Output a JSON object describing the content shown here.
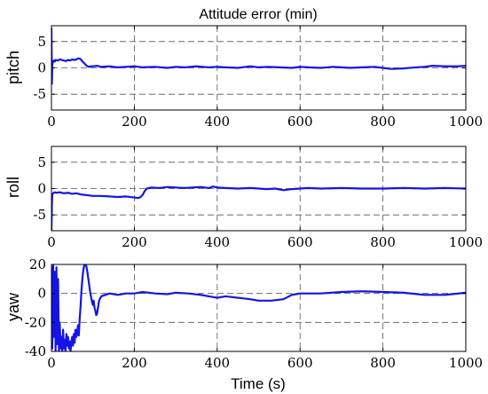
{
  "chart_data": [
    {
      "type": "line",
      "title": "Attitude error (min)",
      "xlabel": "",
      "ylabel": "pitch",
      "xlim": [
        0,
        1000
      ],
      "ylim": [
        -8,
        8
      ],
      "xticks": [
        0,
        200,
        400,
        600,
        800,
        1000
      ],
      "yticks": [
        -5,
        0,
        5
      ],
      "grid": true,
      "series": [
        {
          "color": "#1414e6",
          "x": [
            0,
            1,
            2,
            3,
            4,
            6,
            8,
            10,
            15,
            20,
            25,
            30,
            35,
            40,
            45,
            50,
            55,
            60,
            65,
            70,
            75,
            80,
            85,
            90,
            95,
            100,
            110,
            120,
            140,
            160,
            180,
            200,
            220,
            250,
            280,
            300,
            320,
            350,
            380,
            400,
            420,
            450,
            480,
            500,
            520,
            550,
            580,
            600,
            620,
            650,
            680,
            700,
            720,
            750,
            780,
            800,
            820,
            850,
            880,
            900,
            920,
            950,
            980,
            1000
          ],
          "y": [
            7.5,
            -3,
            0.5,
            1.0,
            1.2,
            1.4,
            1.2,
            1.5,
            1.4,
            1.6,
            1.5,
            1.4,
            1.3,
            1.5,
            1.4,
            1.6,
            1.5,
            1.6,
            1.8,
            1.7,
            1.2,
            0.8,
            0.4,
            0.2,
            0.3,
            0.3,
            0.4,
            0.2,
            0.3,
            0.1,
            0.2,
            0.3,
            0.1,
            0.2,
            0.0,
            0.2,
            0.1,
            0.3,
            0.1,
            0.2,
            0.1,
            0.0,
            0.3,
            0.1,
            0.2,
            0.1,
            0.0,
            0.2,
            0.1,
            0.0,
            0.2,
            0.1,
            0.0,
            0.1,
            0.2,
            0.0,
            -0.2,
            -0.1,
            0.1,
            0.2,
            0.4,
            0.3,
            0.3,
            0.4
          ]
        }
      ]
    },
    {
      "type": "line",
      "title": "",
      "xlabel": "",
      "ylabel": "roll",
      "xlim": [
        0,
        1000
      ],
      "ylim": [
        -8,
        8
      ],
      "xticks": [
        0,
        200,
        400,
        600,
        800,
        1000
      ],
      "yticks": [
        -5,
        0,
        5
      ],
      "grid": true,
      "series": [
        {
          "color": "#1414e6",
          "x": [
            0,
            1,
            2,
            3,
            5,
            8,
            10,
            20,
            30,
            40,
            50,
            60,
            70,
            80,
            90,
            100,
            120,
            140,
            160,
            180,
            200,
            210,
            215,
            220,
            225,
            230,
            240,
            260,
            280,
            300,
            320,
            340,
            360,
            380,
            390,
            400,
            420,
            450,
            480,
            500,
            520,
            540,
            560,
            580,
            600,
            620,
            650,
            700,
            750,
            800,
            850,
            900,
            950,
            1000
          ],
          "y": [
            -8,
            -3,
            -1.2,
            -1.0,
            -0.8,
            -0.7,
            -0.8,
            -0.7,
            -0.9,
            -0.8,
            -1.0,
            -0.9,
            -1.1,
            -1.2,
            -1.3,
            -1.4,
            -1.4,
            -1.5,
            -1.6,
            -1.5,
            -1.7,
            -1.8,
            -1.6,
            -1.2,
            -0.5,
            0.0,
            0.2,
            0.1,
            0.3,
            0.2,
            0.1,
            0.2,
            0.3,
            0.1,
            0.4,
            0.2,
            0.1,
            0.0,
            0.1,
            0.0,
            -0.1,
            0.0,
            -0.3,
            -0.1,
            0.0,
            0.1,
            0.0,
            0.1,
            0.0,
            0.0,
            0.1,
            0.0,
            0.1,
            0.0
          ]
        }
      ]
    },
    {
      "type": "line",
      "title": "",
      "xlabel": "Time (s)",
      "ylabel": "yaw",
      "xlim": [
        0,
        1000
      ],
      "ylim": [
        -40,
        20
      ],
      "xticks": [
        0,
        200,
        400,
        600,
        800,
        1000
      ],
      "yticks": [
        -40,
        -20,
        0,
        20
      ],
      "grid": true,
      "series": [
        {
          "color": "#1414e6",
          "x": [
            0,
            2,
            4,
            6,
            8,
            10,
            12,
            14,
            16,
            18,
            20,
            22,
            24,
            26,
            28,
            30,
            32,
            34,
            36,
            38,
            40,
            42,
            44,
            46,
            48,
            50,
            52,
            54,
            56,
            58,
            60,
            62,
            64,
            66,
            68,
            70,
            72,
            74,
            76,
            78,
            80,
            82,
            84,
            86,
            88,
            90,
            92,
            94,
            96,
            98,
            100,
            102,
            104,
            106,
            108,
            110,
            115,
            120,
            130,
            140,
            160,
            180,
            200,
            220,
            250,
            280,
            300,
            330,
            360,
            380,
            400,
            420,
            450,
            480,
            500,
            530,
            560,
            580,
            600,
            650,
            700,
            750,
            800,
            850,
            900,
            950,
            1000
          ],
          "y": [
            18,
            -38,
            20,
            -30,
            15,
            -40,
            18,
            -35,
            10,
            -40,
            -20,
            -38,
            -30,
            -40,
            -25,
            -38,
            -32,
            -40,
            -28,
            -36,
            -30,
            -38,
            -33,
            -40,
            -34,
            -30,
            -36,
            -28,
            -34,
            -25,
            -30,
            -27,
            -22,
            -29,
            -18,
            -10,
            0,
            8,
            14,
            18,
            20,
            20,
            19,
            16,
            12,
            8,
            4,
            0,
            -3,
            -6,
            -8,
            -5,
            -10,
            -12,
            -15,
            -14,
            -5,
            -2,
            -1,
            0,
            -1,
            0,
            0,
            1,
            0,
            -0.5,
            0.5,
            0,
            -1,
            -2,
            -3,
            -2,
            -3,
            -4,
            -5,
            -5,
            -4,
            -1,
            0,
            0,
            1,
            1.5,
            1,
            0.5,
            -1,
            -1,
            0.5
          ]
        }
      ]
    }
  ]
}
